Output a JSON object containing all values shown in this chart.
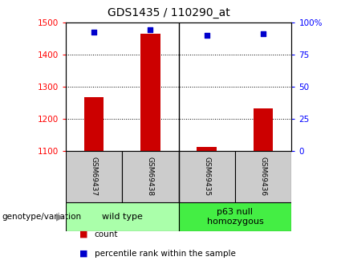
{
  "title": "GDS1435 / 110290_at",
  "samples": [
    "GSM69437",
    "GSM69438",
    "GSM69435",
    "GSM69436"
  ],
  "count_values": [
    1268,
    1463,
    1113,
    1232
  ],
  "percentile_values": [
    92,
    94,
    90,
    91
  ],
  "ylim_left": [
    1100,
    1500
  ],
  "ylim_right": [
    0,
    100
  ],
  "yticks_left": [
    1100,
    1200,
    1300,
    1400,
    1500
  ],
  "yticks_right": [
    0,
    25,
    50,
    75,
    100
  ],
  "bar_color": "#cc0000",
  "dot_color": "#0000cc",
  "groups": [
    {
      "label": "wild type",
      "samples_idx": [
        0,
        1
      ],
      "color": "#aaffaa"
    },
    {
      "label": "p63 null\nhomozygous",
      "samples_idx": [
        2,
        3
      ],
      "color": "#44ee44"
    }
  ],
  "bar_width": 0.35,
  "plot_bg_color": "#ffffff",
  "sample_box_color": "#cccccc",
  "legend_count_label": "count",
  "legend_pct_label": "percentile rank within the sample",
  "genotype_label": "genotype/variation"
}
